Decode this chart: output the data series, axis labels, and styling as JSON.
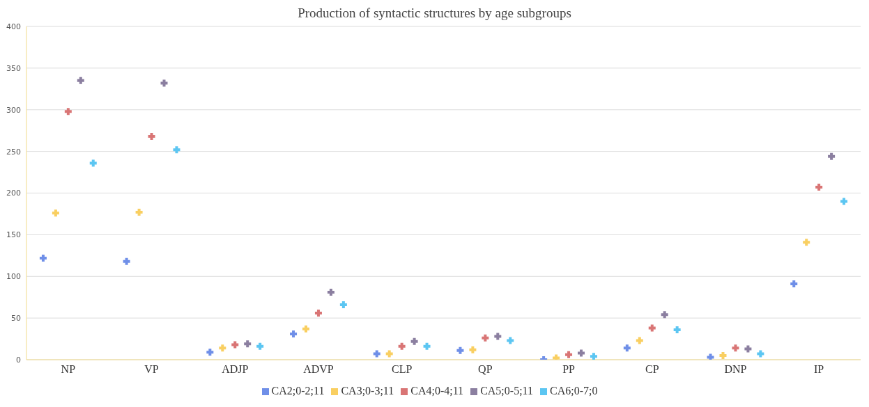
{
  "chart_data": {
    "type": "scatter",
    "title": "Production of syntactic structures by age subgroups",
    "categories": [
      "NP",
      "VP",
      "ADJP",
      "ADVP",
      "CLP",
      "QP",
      "PP",
      "CP",
      "DNP",
      "IP"
    ],
    "series": [
      {
        "name": "CA2;0-2;11",
        "color": "#6f8fe8",
        "values": [
          122,
          118,
          9,
          31,
          7,
          11,
          0,
          14,
          3,
          91
        ]
      },
      {
        "name": "CA3;0-3;11",
        "color": "#f9cf61",
        "values": [
          176,
          177,
          14,
          37,
          7,
          12,
          2,
          23,
          5,
          141
        ]
      },
      {
        "name": "CA4;0-4;11",
        "color": "#d97575",
        "values": [
          298,
          268,
          18,
          56,
          16,
          26,
          6,
          38,
          14,
          207
        ]
      },
      {
        "name": "CA5;0-5;11",
        "color": "#8b7fa0",
        "values": [
          335,
          332,
          19,
          81,
          22,
          28,
          8,
          54,
          13,
          244
        ]
      },
      {
        "name": "CA6;0-7;0",
        "color": "#5cc6f2",
        "values": [
          236,
          252,
          16,
          66,
          16,
          23,
          4,
          36,
          7,
          190
        ]
      }
    ],
    "ylim": [
      0,
      400
    ],
    "yticks": [
      0,
      50,
      100,
      150,
      200,
      250,
      300,
      350,
      400
    ],
    "grid": "y",
    "legend": "bottom",
    "marker": "cross"
  }
}
